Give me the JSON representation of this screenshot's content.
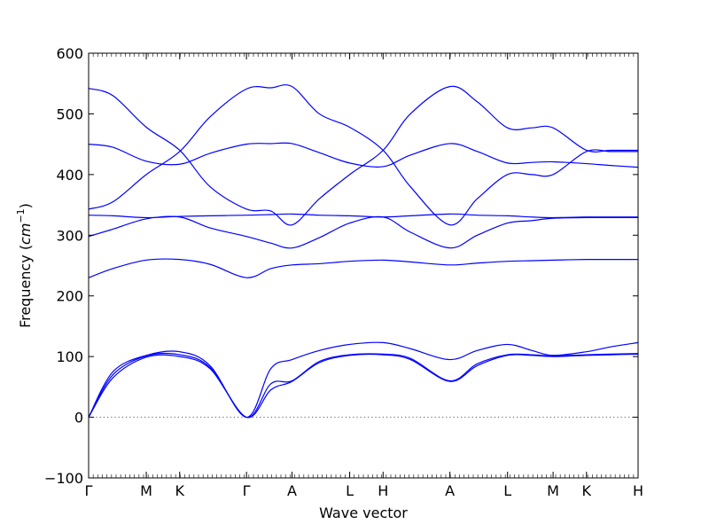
{
  "chart_data": {
    "type": "line",
    "title": "",
    "xlabel": "Wave vector",
    "ylabel": "Frequency ($cm^{-1}$)",
    "ylim": [
      -100,
      600
    ],
    "yticks": [
      -100,
      0,
      100,
      200,
      300,
      400,
      500,
      600
    ],
    "xlim": [
      0,
      9.05
    ],
    "x_ticks": [
      {
        "label": "Γ",
        "x": 0
      },
      {
        "label": "M",
        "x": 0.95
      },
      {
        "label": "K",
        "x": 1.5
      },
      {
        "label": "Γ",
        "x": 2.6
      },
      {
        "label": "A",
        "x": 3.35
      },
      {
        "label": "L",
        "x": 4.3
      },
      {
        "label": "H",
        "x": 4.85
      },
      {
        "label": "A",
        "x": 5.95
      },
      {
        "label": "L",
        "x": 6.9
      },
      {
        "label": "M",
        "x": 7.65
      },
      {
        "label": "K",
        "x": 8.2
      },
      {
        "label": "H",
        "x": 9.05
      }
    ],
    "grid": false,
    "zero_line": true,
    "line_color": "#0000ff",
    "series": [
      {
        "x": [
          0,
          0.4,
          0.95,
          1.5,
          2.0,
          2.6,
          3.0,
          3.35,
          3.8,
          4.3,
          4.85,
          5.3,
          5.95,
          6.4,
          6.9,
          7.3,
          7.65,
          8.2,
          8.6,
          9.05
        ],
        "y": [
          0,
          65,
          99,
          100,
          80,
          0,
          45,
          59,
          90,
          102,
          103,
          95,
          59,
          85,
          102,
          102,
          100,
          102,
          103,
          104
        ]
      },
      {
        "x": [
          0,
          0.4,
          0.95,
          1.5,
          2.0,
          2.6,
          3.0,
          3.35,
          3.8,
          4.3,
          4.85,
          5.3,
          5.95,
          6.4,
          6.9,
          7.3,
          7.65,
          8.2,
          8.6,
          9.05
        ],
        "y": [
          0,
          70,
          101,
          103,
          82,
          0,
          55,
          60,
          92,
          103,
          104,
          97,
          60,
          88,
          103,
          103,
          101,
          103,
          104,
          105
        ]
      },
      {
        "x": [
          0,
          0.4,
          0.95,
          1.5,
          2.0,
          2.6,
          3.0,
          3.35,
          3.8,
          4.3,
          4.85,
          5.3,
          5.95,
          6.4,
          6.9,
          7.3,
          7.65,
          8.2,
          8.6,
          9.05
        ],
        "y": [
          0,
          75,
          102,
          108,
          85,
          0,
          80,
          95,
          110,
          120,
          123,
          113,
          95,
          110,
          120,
          110,
          102,
          108,
          116,
          123
        ]
      },
      {
        "x": [
          0,
          0.4,
          0.95,
          1.5,
          2.0,
          2.6,
          3.0,
          3.35,
          3.8,
          4.3,
          4.85,
          5.3,
          5.95,
          6.4,
          6.9,
          7.3,
          7.65,
          8.2,
          8.6,
          9.05
        ],
        "y": [
          230,
          245,
          259,
          260,
          252,
          230,
          245,
          251,
          253,
          257,
          259,
          256,
          251,
          254,
          257,
          258,
          259,
          260,
          260,
          260
        ]
      },
      {
        "x": [
          0,
          0.4,
          0.95,
          1.5,
          2.0,
          2.6,
          3.0,
          3.35,
          3.8,
          4.3,
          4.85,
          5.3,
          5.95,
          6.4,
          6.9,
          7.3,
          7.65,
          8.2,
          8.6,
          9.05
        ],
        "y": [
          298,
          310,
          327,
          330,
          312,
          298,
          287,
          279,
          296,
          320,
          330,
          305,
          279,
          300,
          320,
          324,
          328,
          329,
          329,
          329
        ]
      },
      {
        "x": [
          0,
          0.4,
          0.95,
          1.5,
          2.0,
          2.6,
          3.0,
          3.35,
          3.8,
          4.3,
          4.85,
          5.3,
          5.95,
          6.4,
          6.9,
          7.3,
          7.65,
          8.2,
          8.6,
          9.05
        ],
        "y": [
          333,
          332,
          329,
          331,
          332,
          333,
          334,
          335,
          333,
          332,
          330,
          332,
          335,
          333,
          332,
          330,
          329,
          330,
          330,
          330
        ]
      },
      {
        "x": [
          0,
          0.4,
          0.95,
          1.5,
          2.0,
          2.6,
          3.0,
          3.35,
          3.8,
          4.3,
          4.85,
          5.3,
          5.95,
          6.4,
          6.9,
          7.3,
          7.65,
          8.2,
          8.6,
          9.05
        ],
        "y": [
          343,
          355,
          400,
          438,
          495,
          541,
          543,
          545,
          500,
          478,
          440,
          380,
          317,
          360,
          400,
          400,
          400,
          438,
          438,
          438
        ]
      },
      {
        "x": [
          0,
          0.4,
          0.95,
          1.5,
          2.0,
          2.6,
          3.0,
          3.35,
          3.8,
          4.3,
          4.85,
          5.3,
          5.95,
          6.4,
          6.9,
          7.3,
          7.65,
          8.2,
          8.6,
          9.05
        ],
        "y": [
          450,
          445,
          422,
          417,
          435,
          450,
          451,
          451,
          436,
          419,
          413,
          432,
          451,
          438,
          419,
          420,
          421,
          418,
          415,
          412
        ]
      },
      {
        "x": [
          0,
          0.4,
          0.95,
          1.5,
          2.0,
          2.6,
          3.0,
          3.35,
          3.8,
          4.3,
          4.85,
          5.3,
          5.95,
          6.4,
          6.9,
          7.3,
          7.65,
          8.2,
          8.6,
          9.05
        ],
        "y": [
          542,
          530,
          478,
          440,
          380,
          343,
          340,
          317,
          360,
          400,
          440,
          500,
          545,
          520,
          477,
          477,
          477,
          440,
          440,
          440
        ]
      }
    ]
  }
}
